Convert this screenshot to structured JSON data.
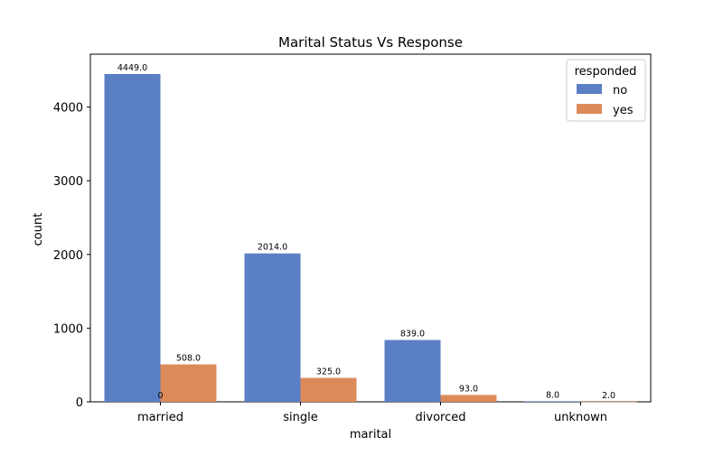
{
  "chart_data": {
    "type": "bar",
    "title": "Marital Status Vs Response",
    "xlabel": "marital",
    "ylabel": "count",
    "categories": [
      "married",
      "single",
      "divorced",
      "unknown"
    ],
    "series": [
      {
        "name": "no",
        "color": "#5a7fc4",
        "values": [
          4449,
          2014,
          839,
          8
        ],
        "labels": [
          "4449.0",
          "2014.0",
          "839.0",
          "8.0"
        ]
      },
      {
        "name": "yes",
        "color": "#dd8a5b",
        "values": [
          508,
          325,
          93,
          2
        ],
        "labels": [
          "508.0",
          "325.0",
          "93.0",
          "2.0"
        ]
      }
    ],
    "ylim": [
      0,
      4718
    ],
    "yticks": [
      0,
      1000,
      2000,
      3000,
      4000
    ],
    "legend": {
      "title": "responded",
      "placement": "top-right"
    },
    "annotations": [
      {
        "text": "0",
        "category": "married",
        "y": 0
      }
    ],
    "grid": false
  }
}
